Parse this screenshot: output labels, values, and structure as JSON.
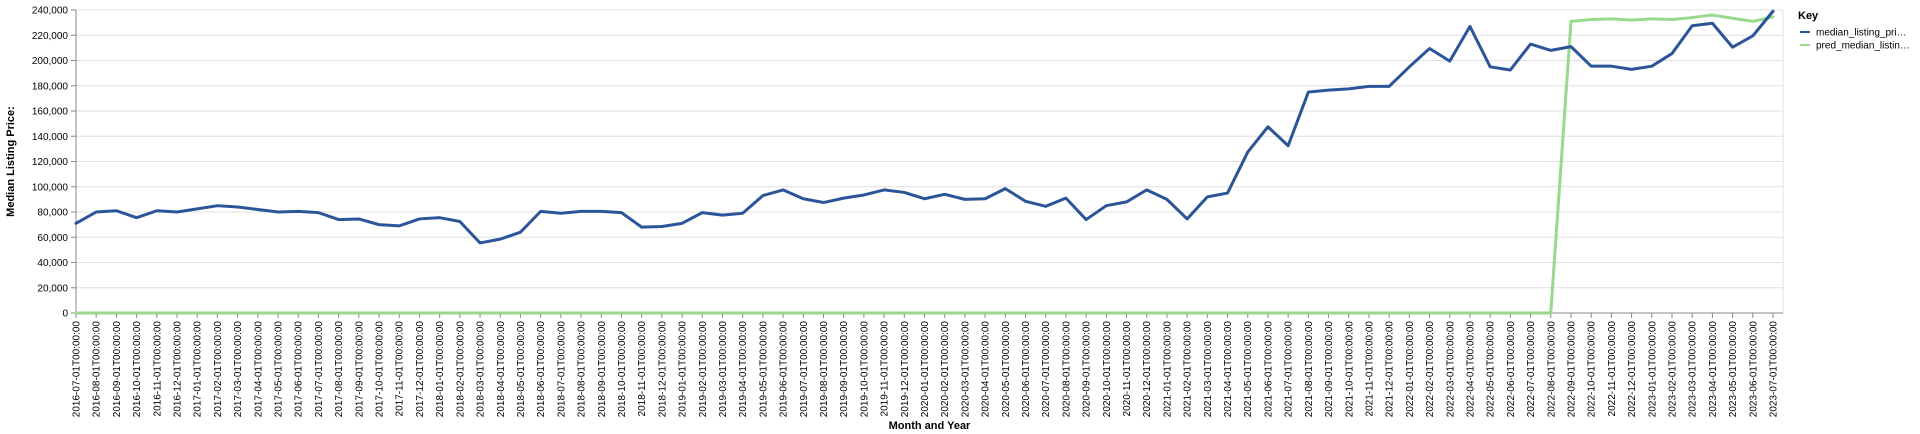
{
  "chart_data": {
    "type": "line",
    "xlabel": "Month and Year",
    "ylabel": "Median Listing Price:",
    "ylim": [
      0,
      240000
    ],
    "y_ticks": [
      0,
      20000,
      40000,
      60000,
      80000,
      100000,
      120000,
      140000,
      160000,
      180000,
      200000,
      220000,
      240000
    ],
    "grid": "horizontal",
    "legend": {
      "title": "Key",
      "position": "right"
    },
    "x": [
      "2016-07-01T00:00:00",
      "2016-08-01T00:00:00",
      "2016-09-01T00:00:00",
      "2016-10-01T00:00:00",
      "2016-11-01T00:00:00",
      "2016-12-01T00:00:00",
      "2017-01-01T00:00:00",
      "2017-02-01T00:00:00",
      "2017-03-01T00:00:00",
      "2017-04-01T00:00:00",
      "2017-05-01T00:00:00",
      "2017-06-01T00:00:00",
      "2017-07-01T00:00:00",
      "2017-08-01T00:00:00",
      "2017-09-01T00:00:00",
      "2017-10-01T00:00:00",
      "2017-11-01T00:00:00",
      "2017-12-01T00:00:00",
      "2018-01-01T00:00:00",
      "2018-02-01T00:00:00",
      "2018-03-01T00:00:00",
      "2018-04-01T00:00:00",
      "2018-05-01T00:00:00",
      "2018-06-01T00:00:00",
      "2018-07-01T00:00:00",
      "2018-08-01T00:00:00",
      "2018-09-01T00:00:00",
      "2018-10-01T00:00:00",
      "2018-11-01T00:00:00",
      "2018-12-01T00:00:00",
      "2019-01-01T00:00:00",
      "2019-02-01T00:00:00",
      "2019-03-01T00:00:00",
      "2019-04-01T00:00:00",
      "2019-05-01T00:00:00",
      "2019-06-01T00:00:00",
      "2019-07-01T00:00:00",
      "2019-08-01T00:00:00",
      "2019-09-01T00:00:00",
      "2019-10-01T00:00:00",
      "2019-11-01T00:00:00",
      "2019-12-01T00:00:00",
      "2020-01-01T00:00:00",
      "2020-02-01T00:00:00",
      "2020-03-01T00:00:00",
      "2020-04-01T00:00:00",
      "2020-05-01T00:00:00",
      "2020-06-01T00:00:00",
      "2020-07-01T00:00:00",
      "2020-08-01T00:00:00",
      "2020-09-01T00:00:00",
      "2020-10-01T00:00:00",
      "2020-11-01T00:00:00",
      "2020-12-01T00:00:00",
      "2021-01-01T00:00:00",
      "2021-02-01T00:00:00",
      "2021-03-01T00:00:00",
      "2021-04-01T00:00:00",
      "2021-05-01T00:00:00",
      "2021-06-01T00:00:00",
      "2021-07-01T00:00:00",
      "2021-08-01T00:00:00",
      "2021-09-01T00:00:00",
      "2021-10-01T00:00:00",
      "2021-11-01T00:00:00",
      "2021-12-01T00:00:00",
      "2022-01-01T00:00:00",
      "2022-02-01T00:00:00",
      "2022-03-01T00:00:00",
      "2022-04-01T00:00:00",
      "2022-05-01T00:00:00",
      "2022-06-01T00:00:00",
      "2022-07-01T00:00:00",
      "2022-08-01T00:00:00",
      "2022-09-01T00:00:00",
      "2022-10-01T00:00:00",
      "2022-11-01T00:00:00",
      "2022-12-01T00:00:00",
      "2023-01-01T00:00:00",
      "2023-02-01T00:00:00",
      "2023-03-01T00:00:00",
      "2023-04-01T00:00:00",
      "2023-05-01T00:00:00",
      "2023-06-01T00:00:00",
      "2023-07-01T00:00:00"
    ],
    "series": [
      {
        "name": "median_listing_pri…",
        "color": "#2c5599",
        "values": [
          71000,
          80000,
          81000,
          75500,
          81000,
          80000,
          82500,
          85000,
          84000,
          82000,
          80000,
          80500,
          79500,
          74000,
          74500,
          70000,
          69000,
          74500,
          75500,
          72500,
          55500,
          58500,
          64000,
          80500,
          79000,
          80500,
          80500,
          79500,
          68000,
          68500,
          71000,
          79500,
          77500,
          79000,
          93000,
          97500,
          90500,
          87500,
          91000,
          93500,
          97500,
          95500,
          90500,
          94000,
          90000,
          90500,
          98500,
          88500,
          84500,
          91000,
          74000,
          85000,
          88000,
          97500,
          90000,
          74500,
          92000,
          95000,
          127500,
          147500,
          132500,
          175000,
          176500,
          177500,
          179500,
          179500,
          195000,
          209500,
          199500,
          227000,
          195000,
          192500,
          213000,
          208000,
          211000,
          195500,
          195500,
          193000,
          195500,
          205500,
          227500,
          229500,
          210500,
          219500,
          239000
        ]
      },
      {
        "name": "pred_median_listin…",
        "color": "#98d98e",
        "values": [
          0,
          0,
          0,
          0,
          0,
          0,
          0,
          0,
          0,
          0,
          0,
          0,
          0,
          0,
          0,
          0,
          0,
          0,
          0,
          0,
          0,
          0,
          0,
          0,
          0,
          0,
          0,
          0,
          0,
          0,
          0,
          0,
          0,
          0,
          0,
          0,
          0,
          0,
          0,
          0,
          0,
          0,
          0,
          0,
          0,
          0,
          0,
          0,
          0,
          0,
          0,
          0,
          0,
          0,
          0,
          0,
          0,
          0,
          0,
          0,
          0,
          0,
          0,
          0,
          0,
          0,
          0,
          0,
          0,
          0,
          0,
          0,
          0,
          0,
          231000,
          232500,
          233000,
          232000,
          233000,
          232500,
          234000,
          236000,
          233500,
          231000,
          234500
        ]
      }
    ]
  }
}
